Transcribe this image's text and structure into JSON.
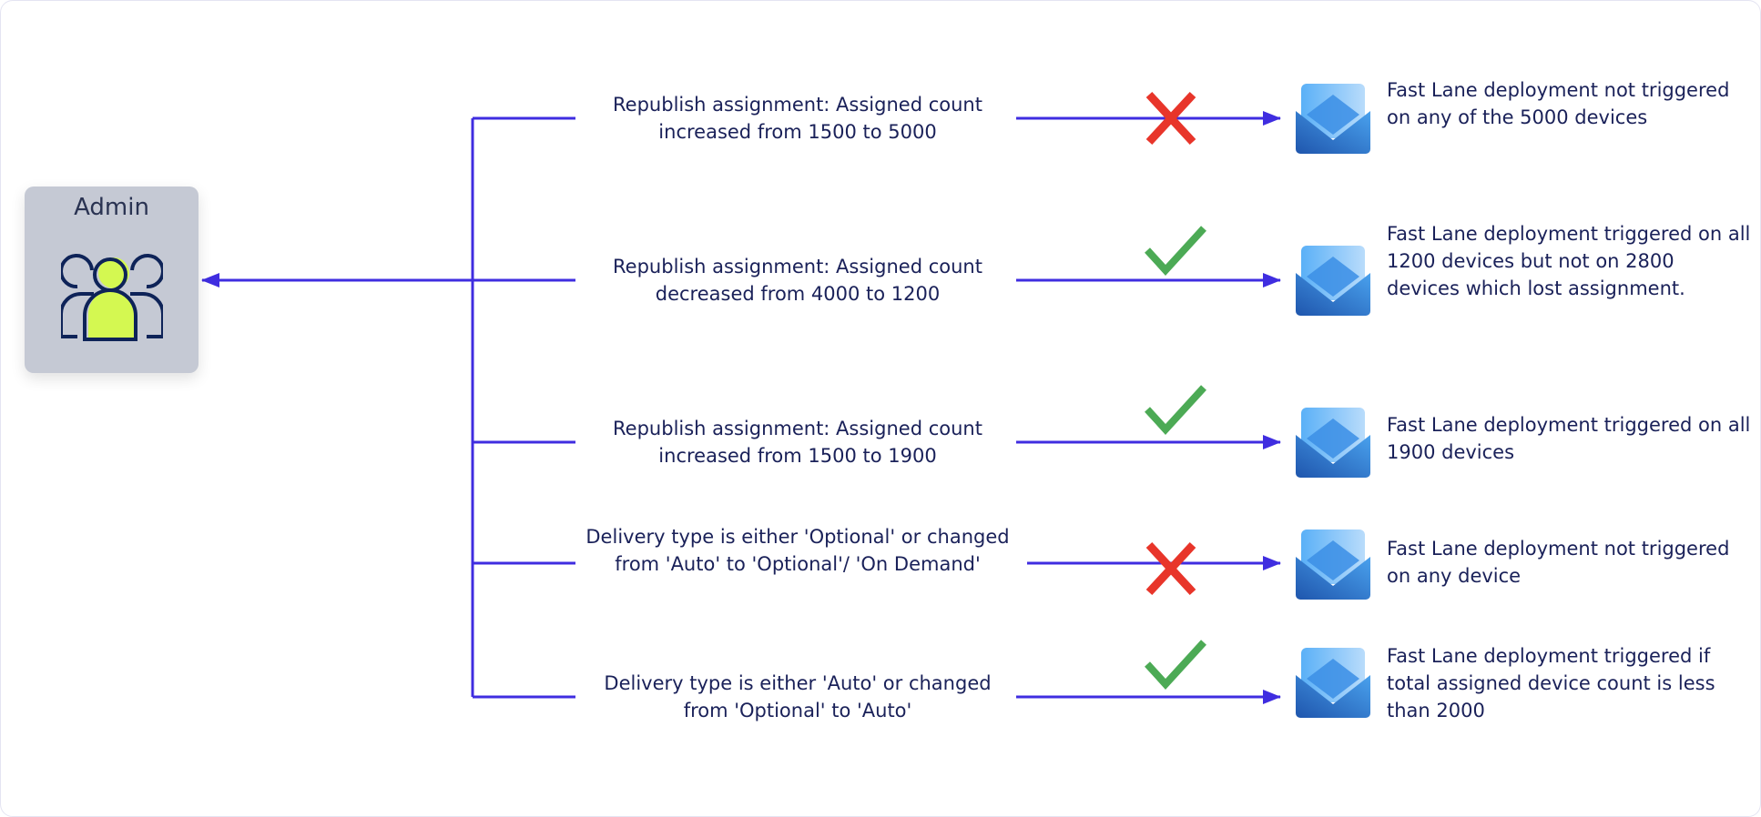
{
  "admin": {
    "title": "Admin",
    "icon": "users-group-icon"
  },
  "colors": {
    "connector": "#3f2de0",
    "cross": "#e8352a",
    "check": "#4caa55",
    "envelope": "#3a8ae0",
    "admin_bg": "#c5c9d4",
    "user_fill": "#d4f851"
  },
  "rows": [
    {
      "condition": "Republish assignment: Assigned count increased from 1500 to 5000",
      "status": "cross",
      "result": "Fast Lane deployment not triggered on any of the 5000 devices"
    },
    {
      "condition": "Republish assignment: Assigned count decreased from 4000 to 1200",
      "status": "check",
      "result": "Fast Lane deployment triggered on all 1200 devices but not on 2800 devices which lost assignment."
    },
    {
      "condition": "Republish assignment: Assigned count increased from 1500 to 1900",
      "status": "check",
      "result": "Fast Lane deployment triggered on all 1900 devices"
    },
    {
      "condition": "Delivery type is either 'Optional' or changed from 'Auto' to 'Optional'/ 'On Demand'",
      "status": "cross",
      "result": "Fast Lane deployment not triggered on any device"
    },
    {
      "condition": "Delivery type is either 'Auto' or changed from 'Optional' to 'Auto'",
      "status": "check",
      "result": "Fast Lane deployment triggered if total assigned device count is less than 2000"
    }
  ]
}
